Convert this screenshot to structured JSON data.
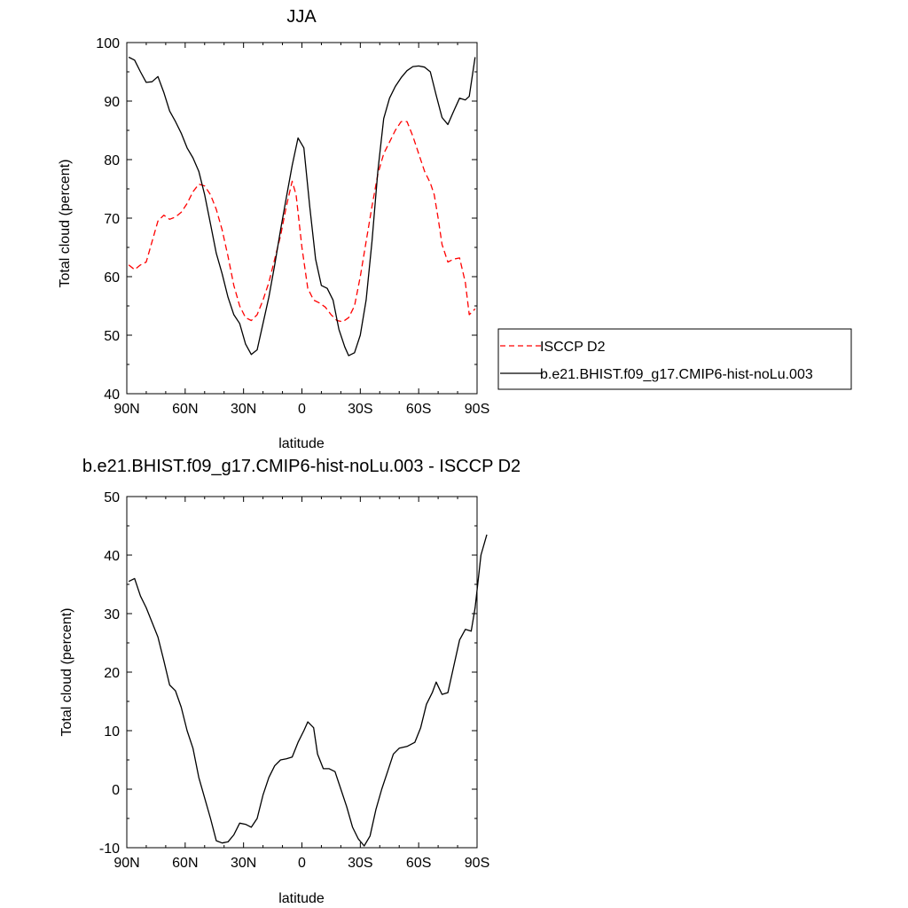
{
  "chart_data": [
    {
      "type": "line",
      "title": "JJA",
      "xlabel": "latitude",
      "ylabel": "Total cloud (percent)",
      "ylim": [
        40,
        100
      ],
      "xlim": [
        -90,
        90
      ],
      "yticks": [
        40,
        50,
        60,
        70,
        80,
        90,
        100
      ],
      "xticks": [
        {
          "value": -90,
          "label": "90N"
        },
        {
          "value": -60,
          "label": "60N"
        },
        {
          "value": -30,
          "label": "30N"
        },
        {
          "value": 0,
          "label": "0"
        },
        {
          "value": 30,
          "label": "30S"
        },
        {
          "value": 60,
          "label": "60S"
        },
        {
          "value": 90,
          "label": "90S"
        }
      ],
      "grid": false,
      "legend_position": "right",
      "series": [
        {
          "name": "ISCCP D2",
          "color": "#ff0000",
          "style": "dashed",
          "points": [
            [
              -89,
              62
            ],
            [
              -86,
              61.2
            ],
            [
              -83,
              62
            ],
            [
              -80,
              62.5
            ],
            [
              -77,
              66
            ],
            [
              -74,
              69.5
            ],
            [
              -71,
              70.5
            ],
            [
              -68,
              69.8
            ],
            [
              -65,
              70.2
            ],
            [
              -62,
              71
            ],
            [
              -59,
              72.5
            ],
            [
              -56,
              74.5
            ],
            [
              -53,
              75.8
            ],
            [
              -50,
              75.5
            ],
            [
              -47,
              74
            ],
            [
              -44,
              71.5
            ],
            [
              -41,
              68
            ],
            [
              -38,
              63.5
            ],
            [
              -35,
              58.5
            ],
            [
              -32,
              55
            ],
            [
              -29,
              53
            ],
            [
              -26,
              52.5
            ],
            [
              -23,
              53.5
            ],
            [
              -20,
              56
            ],
            [
              -17,
              59
            ],
            [
              -14,
              63
            ],
            [
              -11,
              67
            ],
            [
              -8,
              72
            ],
            [
              -5,
              76.3
            ],
            [
              -3,
              74
            ],
            [
              0,
              65
            ],
            [
              3,
              58
            ],
            [
              6,
              56
            ],
            [
              9,
              55.5
            ],
            [
              12,
              54.8
            ],
            [
              15,
              53.5
            ],
            [
              18,
              52.5
            ],
            [
              21,
              52.3
            ],
            [
              24,
              53
            ],
            [
              27,
              55
            ],
            [
              30,
              60
            ],
            [
              33,
              66
            ],
            [
              36,
              72
            ],
            [
              39,
              77.5
            ],
            [
              42,
              81
            ],
            [
              45,
              83
            ],
            [
              48,
              85
            ],
            [
              51,
              86.5
            ],
            [
              54,
              86.5
            ],
            [
              57,
              84
            ],
            [
              60,
              81
            ],
            [
              63,
              78
            ],
            [
              66,
              76
            ],
            [
              68,
              74
            ],
            [
              70,
              70
            ],
            [
              72,
              65.5
            ],
            [
              75,
              62.5
            ],
            [
              78,
              63
            ],
            [
              81,
              63.2
            ],
            [
              84,
              59
            ],
            [
              86,
              53.5
            ],
            [
              89,
              54.5
            ]
          ]
        },
        {
          "name": "b.e21.BHIST.f09_g17.CMIP6-hist-noLu.003",
          "color": "#000000",
          "style": "solid",
          "points": [
            [
              -89,
              97.5
            ],
            [
              -86,
              97
            ],
            [
              -83,
              95
            ],
            [
              -80,
              93.2
            ],
            [
              -77,
              93.3
            ],
            [
              -74,
              94.2
            ],
            [
              -71,
              91.5
            ],
            [
              -68,
              88.3
            ],
            [
              -65,
              86.5
            ],
            [
              -62,
              84.5
            ],
            [
              -59,
              82
            ],
            [
              -56,
              80.3
            ],
            [
              -53,
              78
            ],
            [
              -50,
              74
            ],
            [
              -47,
              69
            ],
            [
              -44,
              64
            ],
            [
              -41,
              60.5
            ],
            [
              -38,
              56.5
            ],
            [
              -35,
              53.5
            ],
            [
              -32,
              52
            ],
            [
              -29,
              48.5
            ],
            [
              -26,
              46.7
            ],
            [
              -23,
              47.5
            ],
            [
              -20,
              52
            ],
            [
              -17,
              56.5
            ],
            [
              -14,
              62
            ],
            [
              -11,
              68
            ],
            [
              -8,
              73.5
            ],
            [
              -5,
              79
            ],
            [
              -2,
              83.7
            ],
            [
              1,
              82
            ],
            [
              4,
              72
            ],
            [
              7,
              63
            ],
            [
              10,
              58.5
            ],
            [
              13,
              58
            ],
            [
              16,
              56
            ],
            [
              19,
              51
            ],
            [
              22,
              48
            ],
            [
              24,
              46.5
            ],
            [
              27,
              47
            ],
            [
              30,
              50
            ],
            [
              33,
              56
            ],
            [
              36,
              66
            ],
            [
              39,
              78
            ],
            [
              42,
              87
            ],
            [
              45,
              90.5
            ],
            [
              48,
              92.5
            ],
            [
              51,
              94
            ],
            [
              54,
              95.2
            ],
            [
              57,
              95.9
            ],
            [
              60,
              96
            ],
            [
              63,
              95.8
            ],
            [
              66,
              95
            ],
            [
              69,
              91
            ],
            [
              72,
              87.2
            ],
            [
              75,
              86
            ],
            [
              78,
              88.3
            ],
            [
              81,
              90.5
            ],
            [
              84,
              90.2
            ],
            [
              86,
              90.8
            ],
            [
              89,
              97.5
            ]
          ]
        }
      ]
    },
    {
      "type": "line",
      "title": "b.e21.BHIST.f09_g17.CMIP6-hist-noLu.003 - ISCCP D2",
      "xlabel": "latitude",
      "ylabel": "Total cloud (percent)",
      "ylim": [
        -10,
        50
      ],
      "xlim": [
        -90,
        90
      ],
      "yticks": [
        -10,
        0,
        10,
        20,
        30,
        40,
        50
      ],
      "xticks": [
        {
          "value": -90,
          "label": "90N"
        },
        {
          "value": -60,
          "label": "60N"
        },
        {
          "value": -30,
          "label": "30N"
        },
        {
          "value": 0,
          "label": "0"
        },
        {
          "value": 30,
          "label": "30S"
        },
        {
          "value": 60,
          "label": "60S"
        },
        {
          "value": 90,
          "label": "90S"
        }
      ],
      "grid": false,
      "series": [
        {
          "name": "",
          "color": "#000000",
          "style": "solid",
          "points": [
            [
              -89,
              35.5
            ],
            [
              -86,
              36
            ],
            [
              -83,
              33
            ],
            [
              -80,
              31
            ],
            [
              -77,
              28.5
            ],
            [
              -74,
              26
            ],
            [
              -71,
              22
            ],
            [
              -68,
              17.8
            ],
            [
              -65,
              16.8
            ],
            [
              -62,
              14
            ],
            [
              -59,
              10
            ],
            [
              -56,
              7
            ],
            [
              -53,
              2
            ],
            [
              -50,
              -1.5
            ],
            [
              -47,
              -5
            ],
            [
              -44,
              -8.8
            ],
            [
              -41,
              -9.2
            ],
            [
              -38,
              -9
            ],
            [
              -35,
              -7.8
            ],
            [
              -32,
              -5.8
            ],
            [
              -29,
              -6
            ],
            [
              -26,
              -6.5
            ],
            [
              -23,
              -5
            ],
            [
              -20,
              -1
            ],
            [
              -17,
              2
            ],
            [
              -14,
              4
            ],
            [
              -11,
              5
            ],
            [
              -8,
              5.2
            ],
            [
              -5,
              5.5
            ],
            [
              -2,
              8
            ],
            [
              1,
              10
            ],
            [
              3,
              11.5
            ],
            [
              6,
              10.5
            ],
            [
              8,
              6
            ],
            [
              11,
              3.5
            ],
            [
              14,
              3.5
            ],
            [
              17,
              3
            ],
            [
              20,
              0
            ],
            [
              23,
              -3
            ],
            [
              26,
              -6.5
            ],
            [
              29,
              -8.5
            ],
            [
              32,
              -9.7
            ],
            [
              35,
              -8
            ],
            [
              38,
              -3.5
            ],
            [
              41,
              0
            ],
            [
              44,
              3
            ],
            [
              47,
              6
            ],
            [
              50,
              7
            ],
            [
              54,
              7.3
            ],
            [
              58,
              8
            ],
            [
              61,
              10.5
            ],
            [
              64,
              14.5
            ],
            [
              67,
              16.5
            ],
            [
              69,
              18.3
            ],
            [
              72,
              16.2
            ],
            [
              75,
              16.5
            ],
            [
              78,
              21
            ],
            [
              81,
              25.5
            ],
            [
              84,
              27.3
            ],
            [
              87,
              27
            ],
            [
              89,
              31
            ],
            [
              92,
              40
            ],
            [
              95,
              43.5
            ]
          ]
        }
      ]
    }
  ]
}
